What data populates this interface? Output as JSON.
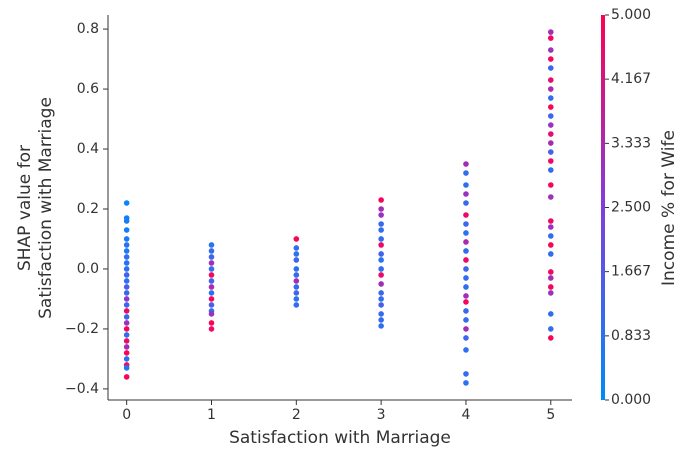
{
  "chart_data": {
    "type": "scatter",
    "xlabel": "Satisfaction with Marriage",
    "ylabel": [
      "SHAP value for",
      "Satisfaction with Marriage"
    ],
    "colorbar_label": "Income % for Wife",
    "colormap": [
      "#008afb",
      "#7f3fdc",
      "#ff0052"
    ],
    "clim": [
      0,
      5
    ],
    "cticks": [
      {
        "value": 0,
        "label": "0.000"
      },
      0.833,
      1.667,
      {
        "value": 2.5,
        "label": "2.500"
      },
      3.333,
      4.167,
      {
        "value": 5,
        "label": "5.000"
      }
    ],
    "xlim": [
      -0.22,
      5.25
    ],
    "xticks": [
      0,
      1,
      2,
      3,
      4,
      5
    ],
    "ylim": [
      -0.437,
      0.847
    ],
    "yticks": [
      {
        "value": -0.4,
        "label": "−0.4"
      },
      {
        "value": -0.2,
        "label": "−0.2"
      },
      {
        "value": 0,
        "label": "0.0"
      },
      0.2,
      0.4,
      0.6,
      0.8
    ],
    "x": [
      0,
      0,
      0,
      0,
      0,
      0,
      0,
      0,
      0,
      0,
      0,
      0,
      0,
      0,
      0,
      0,
      0,
      0,
      0,
      0,
      0,
      0,
      0,
      0,
      0,
      0,
      0,
      0,
      1,
      1,
      1,
      1,
      1,
      1,
      1,
      1,
      1,
      1,
      1,
      1,
      1,
      1,
      1,
      2,
      2,
      2,
      2,
      2,
      2,
      2,
      2,
      2,
      2,
      2,
      3,
      3,
      3,
      3,
      3,
      3,
      3,
      3,
      3,
      3,
      3,
      3,
      3,
      3,
      3,
      3,
      3,
      3,
      4,
      4,
      4,
      4,
      4,
      4,
      4,
      4,
      4,
      4,
      4,
      4,
      4,
      4,
      4,
      4,
      4,
      4,
      4,
      4,
      4,
      4,
      4,
      5,
      5,
      5,
      5,
      5,
      5,
      5,
      5,
      5,
      5,
      5,
      5,
      5,
      5,
      5,
      5,
      5,
      5,
      5,
      5,
      5,
      5,
      5,
      5,
      5,
      5,
      5,
      5,
      5,
      5
    ],
    "values": [
      0.22,
      0.17,
      0.16,
      0.13,
      0.1,
      0.08,
      0.06,
      0.04,
      0.02,
      0.0,
      -0.02,
      -0.04,
      -0.06,
      -0.08,
      -0.1,
      -0.12,
      -0.14,
      -0.16,
      -0.18,
      -0.2,
      -0.22,
      -0.24,
      -0.26,
      -0.28,
      -0.3,
      -0.32,
      -0.33,
      -0.36,
      0.08,
      0.06,
      0.04,
      0.02,
      0.0,
      -0.02,
      -0.04,
      -0.06,
      -0.08,
      -0.1,
      -0.12,
      -0.14,
      -0.15,
      -0.18,
      -0.2,
      0.1,
      0.07,
      0.05,
      0.03,
      0.0,
      -0.02,
      -0.04,
      -0.06,
      -0.08,
      -0.1,
      -0.12,
      0.23,
      0.2,
      0.18,
      0.15,
      0.13,
      0.1,
      0.08,
      0.05,
      0.03,
      0.0,
      -0.02,
      -0.05,
      -0.08,
      -0.1,
      -0.12,
      -0.15,
      -0.17,
      -0.19,
      0.35,
      0.32,
      0.28,
      0.25,
      0.22,
      0.18,
      0.15,
      0.12,
      0.09,
      0.06,
      0.03,
      0.0,
      -0.03,
      -0.06,
      -0.09,
      -0.11,
      -0.14,
      -0.17,
      -0.2,
      -0.23,
      -0.27,
      -0.35,
      -0.38,
      0.79,
      0.77,
      0.73,
      0.7,
      0.67,
      0.63,
      0.6,
      0.57,
      0.54,
      0.51,
      0.48,
      0.45,
      0.42,
      0.39,
      0.36,
      0.33,
      0.28,
      0.24,
      0.16,
      0.14,
      0.11,
      0.08,
      0.05,
      -0.01,
      -0.03,
      -0.06,
      -0.08,
      -0.15,
      -0.2,
      -0.23
    ],
    "color_values": [
      0.2,
      0.3,
      0.5,
      0.4,
      0.6,
      0.8,
      0.5,
      1.0,
      0.7,
      0.9,
      1.2,
      0.8,
      1.5,
      1.1,
      2.8,
      1.3,
      4.6,
      1.2,
      3.0,
      4.8,
      1.0,
      4.5,
      3.2,
      4.9,
      0.9,
      4.7,
      0.6,
      4.9,
      0.8,
      1.0,
      1.2,
      3.0,
      1.1,
      4.6,
      1.3,
      3.3,
      0.9,
      4.8,
      1.4,
      1.0,
      3.0,
      4.9,
      4.7,
      4.8,
      1.0,
      0.8,
      1.2,
      0.9,
      1.1,
      3.2,
      1.0,
      1.3,
      0.8,
      1.0,
      4.8,
      3.2,
      3.0,
      1.2,
      0.9,
      1.1,
      4.6,
      1.3,
      0.8,
      1.0,
      4.5,
      3.1,
      1.2,
      0.9,
      1.4,
      1.0,
      1.1,
      0.9,
      3.2,
      1.0,
      0.9,
      3.0,
      1.1,
      4.6,
      1.2,
      0.8,
      3.3,
      1.0,
      4.7,
      1.3,
      1.0,
      0.9,
      3.1,
      4.8,
      1.1,
      1.0,
      3.2,
      1.2,
      0.9,
      1.0,
      0.8,
      3.2,
      4.7,
      3.0,
      4.8,
      1.1,
      4.6,
      3.3,
      1.0,
      4.9,
      1.2,
      3.0,
      4.5,
      3.2,
      1.3,
      4.7,
      0.9,
      4.8,
      3.1,
      4.6,
      3.0,
      0.9,
      4.9,
      1.0,
      4.7,
      3.2,
      4.8,
      3.0,
      0.9,
      1.0,
      4.9
    ]
  }
}
